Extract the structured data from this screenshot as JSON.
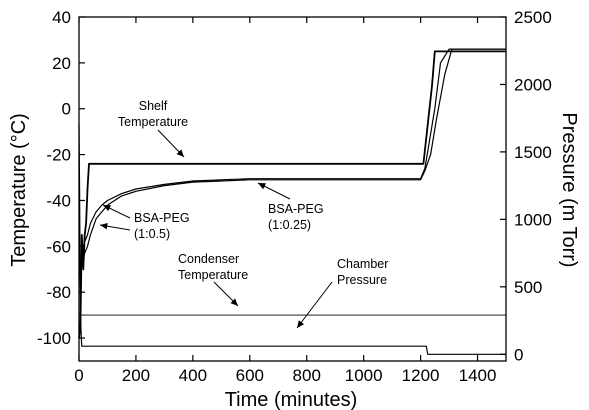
{
  "chart_data": {
    "type": "line",
    "xlabel": "Time (minutes)",
    "ylabel_left": "Temperature (°C)",
    "ylabel_right": "Pressure (m Torr)",
    "xlim": [
      0,
      1500
    ],
    "ylim_left": [
      -110,
      40
    ],
    "ylim_right": [
      -50,
      2500
    ],
    "grid": false,
    "legend": "none",
    "x_ticks": [
      0,
      200,
      400,
      600,
      800,
      1000,
      1200,
      1400
    ],
    "y_ticks_left": [
      40,
      20,
      0,
      -20,
      -40,
      -60,
      -80,
      -100
    ],
    "y_ticks_right": [
      2500,
      2000,
      1500,
      1000,
      500,
      0
    ],
    "series": [
      {
        "axis": "left",
        "x": [
          0,
          5,
          10,
          15,
          20,
          25,
          30,
          35,
          1210,
          1240,
          1250,
          1500
        ],
        "y": [
          -100,
          -95,
          -55,
          -70,
          -55,
          -50,
          -35,
          -24,
          -24,
          10,
          25,
          25
        ]
      },
      {
        "axis": "left",
        "x": [
          10,
          20,
          30,
          40,
          60,
          80,
          100,
          150,
          200,
          300,
          400,
          500,
          600,
          800,
          1000,
          1200,
          1215,
          1230,
          1250,
          1270,
          1300,
          1500
        ],
        "y": [
          -62,
          -58,
          -55,
          -50,
          -45,
          -42,
          -40,
          -37,
          -35,
          -33,
          -31.5,
          -31,
          -30.5,
          -30.5,
          -30.5,
          -30.5,
          -26,
          -15,
          0,
          20,
          26,
          26
        ]
      },
      {
        "axis": "left",
        "x": [
          10,
          20,
          30,
          40,
          60,
          80,
          100,
          150,
          200,
          300,
          400,
          500,
          600,
          800,
          1000,
          1200,
          1215,
          1235,
          1255,
          1285,
          1310,
          1500
        ],
        "y": [
          -68,
          -63,
          -60,
          -55,
          -48,
          -45,
          -42,
          -38,
          -36,
          -33.5,
          -32,
          -31.5,
          -31,
          -31,
          -31,
          -31,
          -27,
          -20,
          -5,
          15,
          26,
          26
        ]
      },
      {
        "axis": "left",
        "x": [
          0,
          1500
        ],
        "y": [
          -90,
          -90
        ]
      },
      {
        "axis": "right",
        "x": [
          0,
          2,
          4,
          6,
          8,
          10,
          200,
          400,
          600,
          800,
          1000,
          1215,
          1220,
          1225,
          1500
        ],
        "y": [
          1700,
          1200,
          600,
          250,
          120,
          60,
          60,
          60,
          60,
          60,
          60,
          60,
          60,
          0,
          0
        ]
      }
    ],
    "annotations": [
      {
        "lines": [
          "Shelf",
          "Temperature"
        ]
      },
      {
        "lines": [
          "BSA-PEG",
          "(1:0.5)"
        ]
      },
      {
        "lines": [
          "BSA-PEG",
          "(1:0.25)"
        ]
      },
      {
        "lines": [
          "Condenser",
          "Temperature"
        ]
      },
      {
        "lines": [
          "Chamber",
          "Pressure"
        ]
      }
    ]
  }
}
